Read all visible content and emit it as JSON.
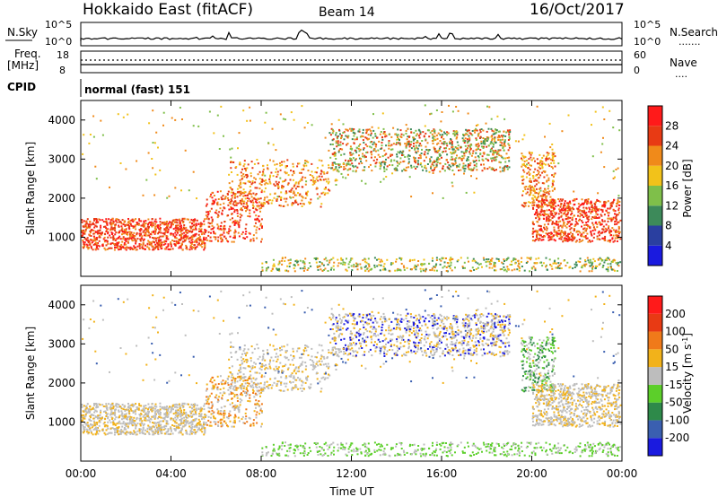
{
  "header": {
    "station": "Hokkaido East (fitACF)",
    "beam": "Beam 14",
    "date": "16/Oct/2017"
  },
  "noise_panel": {
    "left_label": "N.Sky",
    "right_label": "N.Search",
    "tick_top": "10^5",
    "tick_bottom": "10^0",
    "legend_line": "......."
  },
  "freq_panel": {
    "label_line1": "Freq.",
    "label_line2": "[MHz]",
    "left_ticks": [
      "18",
      "8"
    ],
    "right_ticks": [
      "60",
      "0"
    ],
    "right_label": "Nave",
    "legend_line": "...."
  },
  "cpid_panel": {
    "label": "CPID",
    "mode_text": "normal (fast) 151"
  },
  "chart_data": [
    {
      "type": "heatmap",
      "name": "power",
      "ylabel": "Slant Range [km]",
      "yticks": [
        "1000",
        "2000",
        "3000",
        "4000"
      ],
      "colorbar_label": "Power [dB]",
      "colorbar_ticks": [
        "4",
        "8",
        "12",
        "16",
        "20",
        "24",
        "28"
      ],
      "colors": [
        "#1a1adf",
        "#2a3fa0",
        "#3d8a5a",
        "#7fbf4a",
        "#f2c21a",
        "#f08a1a",
        "#e83a14",
        "#ff1a1a"
      ]
    },
    {
      "type": "heatmap",
      "name": "velocity",
      "ylabel": "Slant Range [km]",
      "yticks": [
        "1000",
        "2000",
        "3000",
        "4000"
      ],
      "colorbar_label": "Velocity [m s^-1]",
      "colorbar_ticks": [
        "200",
        "100",
        "50",
        "15",
        "-15",
        "-50",
        "-100",
        "-200"
      ],
      "colors": [
        "#1a1adf",
        "#3a5fb0",
        "#2e8a4a",
        "#5ccf2a",
        "#bdbdbd",
        "#f2b21a",
        "#f07a1a",
        "#e83a14",
        "#ff1a1a"
      ]
    }
  ],
  "x_axis": {
    "ticks": [
      "00:00",
      "04:00",
      "08:00",
      "12:00",
      "16:00",
      "20:00",
      "00:00"
    ],
    "label": "Time UT"
  }
}
